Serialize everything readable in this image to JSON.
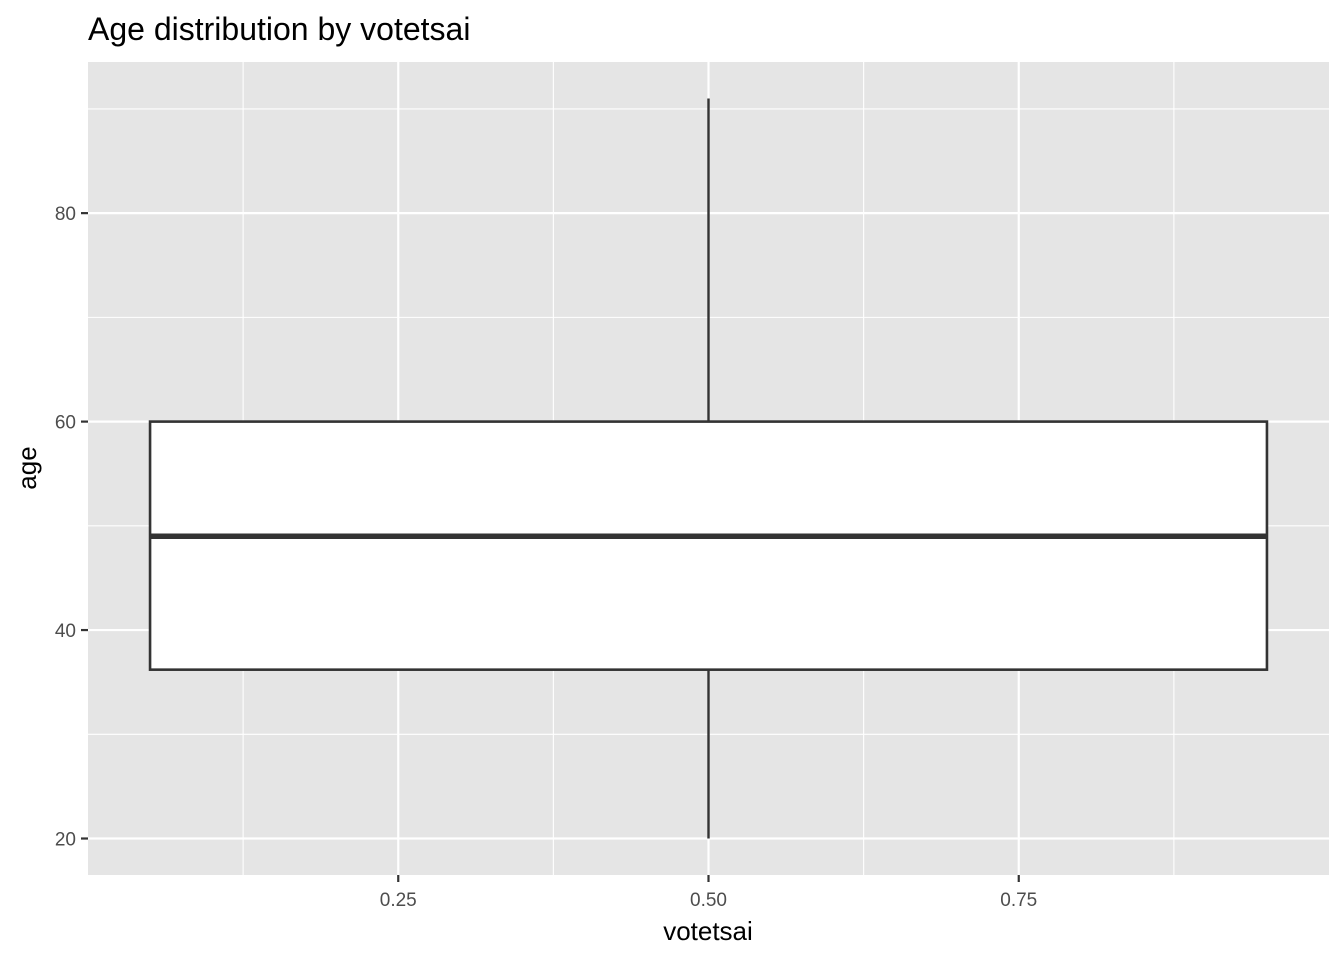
{
  "chart_data": {
    "type": "boxplot",
    "title": "Age distribution by votetsai",
    "xlabel": "votetsai",
    "ylabel": "age",
    "xlim": [
      0.0,
      1.0
    ],
    "ylim": [
      16.5,
      94.5
    ],
    "x_ticks": [
      {
        "value": 0.25,
        "label": "0.25"
      },
      {
        "value": 0.5,
        "label": "0.50"
      },
      {
        "value": 0.75,
        "label": "0.75"
      }
    ],
    "y_ticks": [
      {
        "value": 20,
        "label": "20"
      },
      {
        "value": 40,
        "label": "40"
      },
      {
        "value": 60,
        "label": "60"
      },
      {
        "value": 80,
        "label": "80"
      }
    ],
    "grid": true,
    "box": {
      "x_center": 0.5,
      "x_from": 0.05,
      "x_to": 0.95,
      "min": 20,
      "q1": 36.2,
      "median": 49,
      "q3": 60,
      "max": 91
    },
    "colors": {
      "panel": "#e5e5e5",
      "grid": "#ffffff",
      "box_fill": "#ffffff",
      "box_stroke": "#333333",
      "tick": "#333333"
    }
  }
}
